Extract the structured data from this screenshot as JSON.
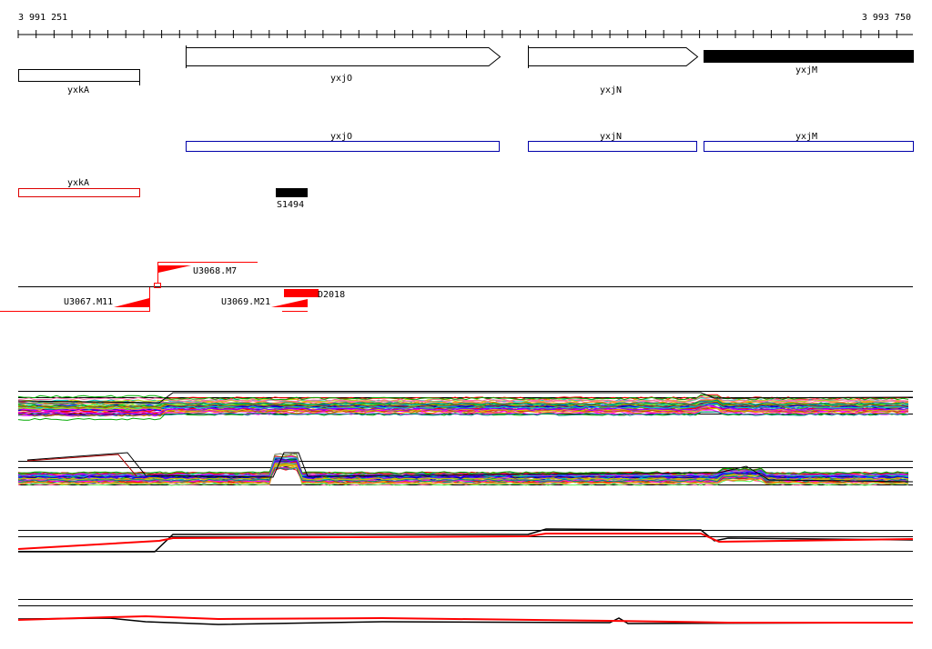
{
  "coords": {
    "start": "3 991 251",
    "end": "3 993 750"
  },
  "genes": [
    {
      "label": "yxkA"
    },
    {
      "label": "yxjO"
    },
    {
      "label": "yxjN"
    },
    {
      "label": "yxjM"
    }
  ],
  "annotations": [
    {
      "label": "yxjO"
    },
    {
      "label": "yxjN"
    },
    {
      "label": "yxjM"
    },
    {
      "label": "yxkA"
    }
  ],
  "feature": {
    "label": "S1494"
  },
  "markers": [
    {
      "label": "U3068.M7"
    },
    {
      "label": "U3067.M11"
    },
    {
      "label": "U3069.M21"
    },
    {
      "label": "D2018"
    }
  ],
  "colors": {
    "axis": "#000000",
    "annotation_blue": "#0000aa",
    "annotation_red": "#dd0000",
    "marker_red": "#ff0000",
    "profile_palette": [
      "#ff0000",
      "#00aa00",
      "#0000ff",
      "#ff00ff",
      "#00cccc",
      "#cccc00",
      "#ff8800",
      "#8800ff",
      "#008888",
      "#aa5500",
      "#ff66aa",
      "#66aa00",
      "#888888",
      "#000088",
      "#55ff55"
    ]
  }
}
